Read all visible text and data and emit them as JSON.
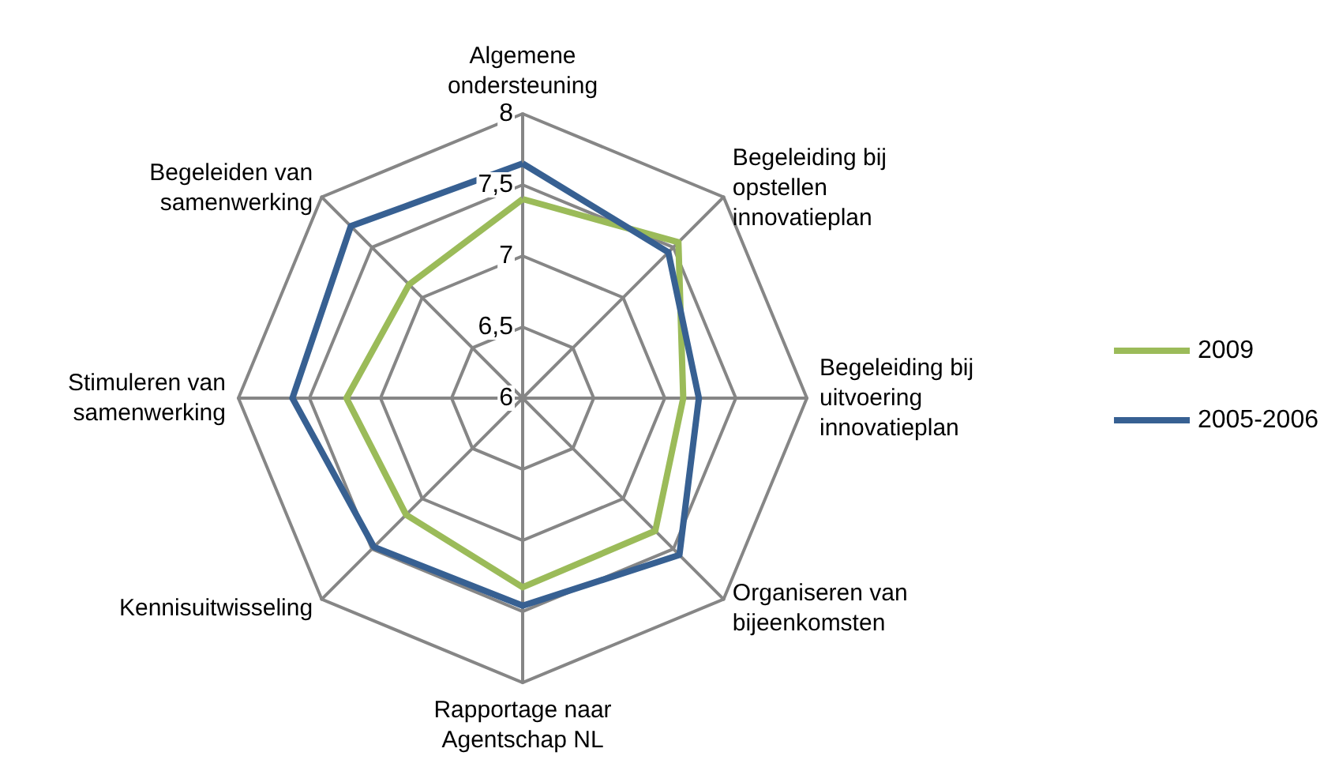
{
  "chart_data": {
    "type": "radar",
    "categories": [
      "Algemene\nondersteuning",
      "Begeleiding bij\nopstellen\ninnovatieplan",
      "Begeleiding bij\nuitvoering\ninnovatieplan",
      "Organiseren van\nbijeenkomsten",
      "Rapportage naar\nAgentschap NL",
      "Kennisuitwisseling",
      "Stimuleren van\nsamenwerking",
      "Begeleiden van\nsamenwerking"
    ],
    "series": [
      {
        "name": "2009",
        "color": "#9bbb59",
        "values": [
          7.4,
          7.55,
          7.13,
          7.32,
          7.33,
          7.16,
          7.24,
          7.13
        ]
      },
      {
        "name": "2005-2006",
        "color": "#376092",
        "values": [
          7.65,
          7.45,
          7.24,
          7.56,
          7.46,
          7.48,
          7.62,
          7.71
        ]
      }
    ],
    "ylim": [
      6,
      8
    ],
    "yticks": [
      6,
      {
        "value": 6.5,
        "label": "6,5"
      },
      7,
      {
        "value": 7.5,
        "label": "7,5"
      },
      8
    ],
    "legend": "right"
  }
}
